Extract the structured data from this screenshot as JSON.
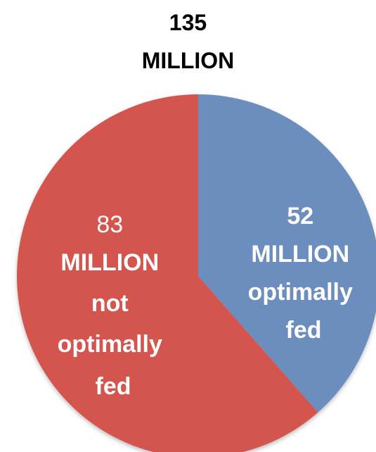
{
  "chart_data": {
    "type": "pie",
    "title_lines": [
      "135",
      "MILLION"
    ],
    "slices": [
      {
        "value": 52,
        "label_lines": [
          "52",
          "MILLION",
          "optimally",
          "fed"
        ],
        "color": "#6c8ebf"
      },
      {
        "value": 83,
        "label_lines": [
          "83",
          "MILLION",
          "not",
          "optimally",
          "fed"
        ],
        "color": "#d3544e"
      }
    ]
  }
}
